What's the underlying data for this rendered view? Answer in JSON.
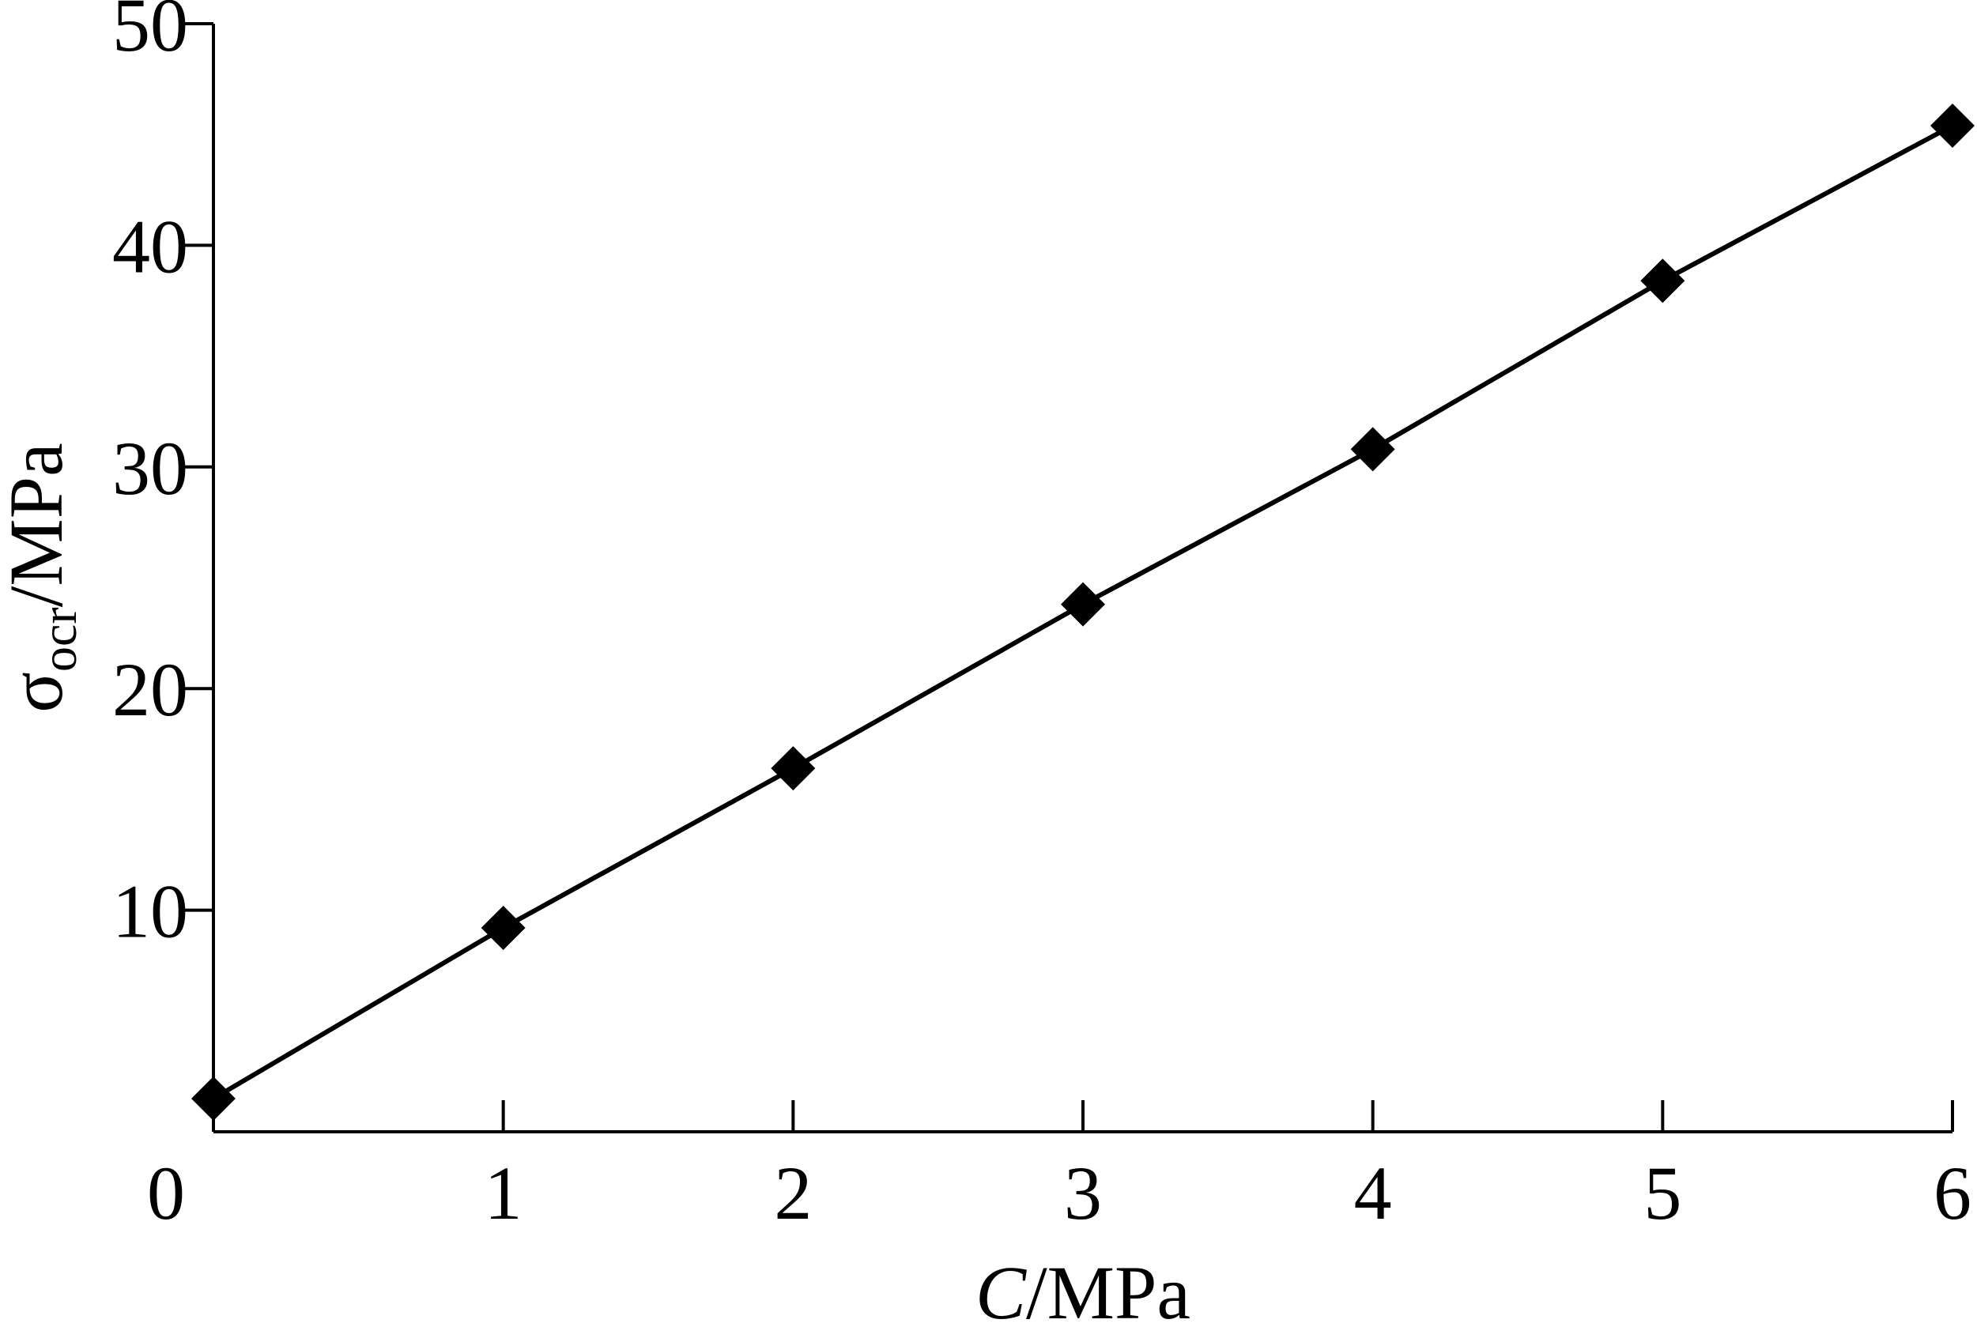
{
  "chart_data": {
    "type": "line",
    "title": "",
    "x": [
      0,
      1,
      2,
      3,
      4,
      5,
      6
    ],
    "series": [
      {
        "values": [
          1.5,
          9.2,
          16.4,
          23.8,
          30.8,
          38.4,
          45.4
        ],
        "marker": "diamond",
        "color": "#000000"
      }
    ],
    "xlabel": {
      "italic": "C",
      "rest": "/MPa"
    },
    "ylabel": {
      "symbol": "σ",
      "subscript": "ocr",
      "rest": "/MPa"
    },
    "xlim": [
      0,
      6
    ],
    "ylim": [
      0,
      50
    ],
    "xticks": [
      0,
      1,
      2,
      3,
      4,
      5,
      6
    ],
    "yticks": [
      10,
      20,
      30,
      40,
      50
    ],
    "ytick_labels": [
      "10",
      "20",
      "30",
      "40",
      "50"
    ],
    "xtick_labels": [
      "0",
      "1",
      "2",
      "3",
      "4",
      "5",
      "6"
    ],
    "grid": false,
    "legend": "none"
  }
}
